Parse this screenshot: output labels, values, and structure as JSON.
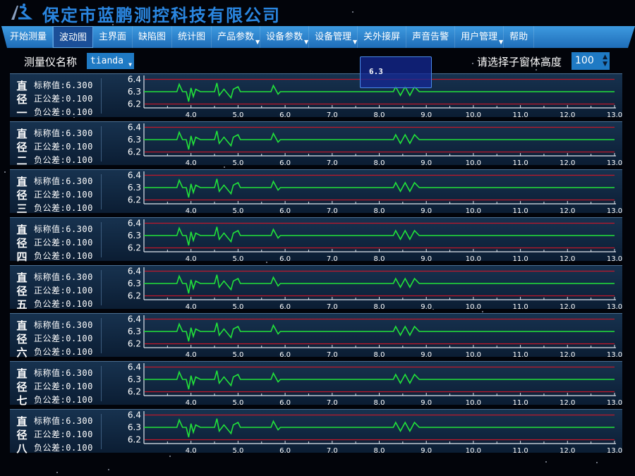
{
  "header": {
    "title": "保定市蓝鹏测控科技有限公司",
    "logo_icon": "lanpeng-logo"
  },
  "menu": [
    {
      "label": "开始测量"
    },
    {
      "label": "波动图",
      "active": true
    },
    {
      "label": "主界面"
    },
    {
      "label": "缺陷图"
    },
    {
      "label": "统计图"
    },
    {
      "label": "产品参数",
      "dropdown": true
    },
    {
      "label": "设备参数",
      "dropdown": true
    },
    {
      "label": "设备管理",
      "dropdown": true
    },
    {
      "label": "关外接屏"
    },
    {
      "label": "声音告警"
    },
    {
      "label": "用户管理",
      "dropdown": true
    },
    {
      "label": "帮助"
    }
  ],
  "toolbar": {
    "instrument_label": "测量仪名称",
    "instrument_value": "tianda",
    "height_label": "请选择子窗体高度",
    "height_value": "100"
  },
  "tooltip": {
    "value": "6.3"
  },
  "colors": {
    "limit_line": "#c0182a",
    "signal": "#22e33a",
    "accent": "#1f7ac4"
  },
  "panels": [
    {
      "name": [
        "直",
        "径",
        "一"
      ],
      "nominal": "标称值:6.300",
      "upper": "正公差:0.100",
      "lower": "负公差:0.100"
    },
    {
      "name": [
        "直",
        "径",
        "二"
      ],
      "nominal": "标称值:6.300",
      "upper": "正公差:0.100",
      "lower": "负公差:0.100"
    },
    {
      "name": [
        "直",
        "径",
        "三"
      ],
      "nominal": "标称值:6.300",
      "upper": "正公差:0.100",
      "lower": "负公差:0.100"
    },
    {
      "name": [
        "直",
        "径",
        "四"
      ],
      "nominal": "标称值:6.300",
      "upper": "正公差:0.100",
      "lower": "负公差:0.100"
    },
    {
      "name": [
        "直",
        "径",
        "五"
      ],
      "nominal": "标称值:6.300",
      "upper": "正公差:0.100",
      "lower": "负公差:0.100"
    },
    {
      "name": [
        "直",
        "径",
        "六"
      ],
      "nominal": "标称值:6.300",
      "upper": "正公差:0.100",
      "lower": "负公差:0.100"
    },
    {
      "name": [
        "直",
        "径",
        "七"
      ],
      "nominal": "标称值:6.300",
      "upper": "正公差:0.100",
      "lower": "负公差:0.100"
    },
    {
      "name": [
        "直",
        "径",
        "八"
      ],
      "nominal": "标称值:6.300",
      "upper": "正公差:0.100",
      "lower": "负公差:0.100"
    }
  ],
  "chart_data": {
    "type": "line",
    "xlim": [
      3.0,
      13.0
    ],
    "ylim": [
      6.18,
      6.42
    ],
    "x_ticks": [
      "4.0",
      "5.0",
      "6.0",
      "7.0",
      "8.0",
      "9.0",
      "10.0",
      "11.0",
      "12.0",
      "13.0"
    ],
    "y_ticks": [
      "6.4",
      "6.3",
      "6.2"
    ],
    "limits": {
      "upper": 6.4,
      "nominal": 6.3,
      "lower": 6.2
    },
    "x": [
      3.0,
      3.7,
      3.75,
      3.82,
      3.9,
      3.95,
      4.0,
      4.05,
      4.1,
      4.2,
      4.5,
      4.55,
      4.6,
      4.7,
      4.85,
      4.9,
      5.0,
      5.05,
      5.7,
      5.75,
      5.85,
      5.9,
      8.3,
      8.35,
      8.45,
      8.55,
      8.65,
      8.75,
      8.85,
      13.0
    ],
    "y": [
      6.3,
      6.3,
      6.36,
      6.3,
      6.3,
      6.22,
      6.33,
      6.26,
      6.32,
      6.3,
      6.3,
      6.37,
      6.27,
      6.32,
      6.25,
      6.32,
      6.34,
      6.3,
      6.3,
      6.35,
      6.28,
      6.3,
      6.3,
      6.34,
      6.27,
      6.34,
      6.27,
      6.34,
      6.3,
      6.3
    ]
  }
}
